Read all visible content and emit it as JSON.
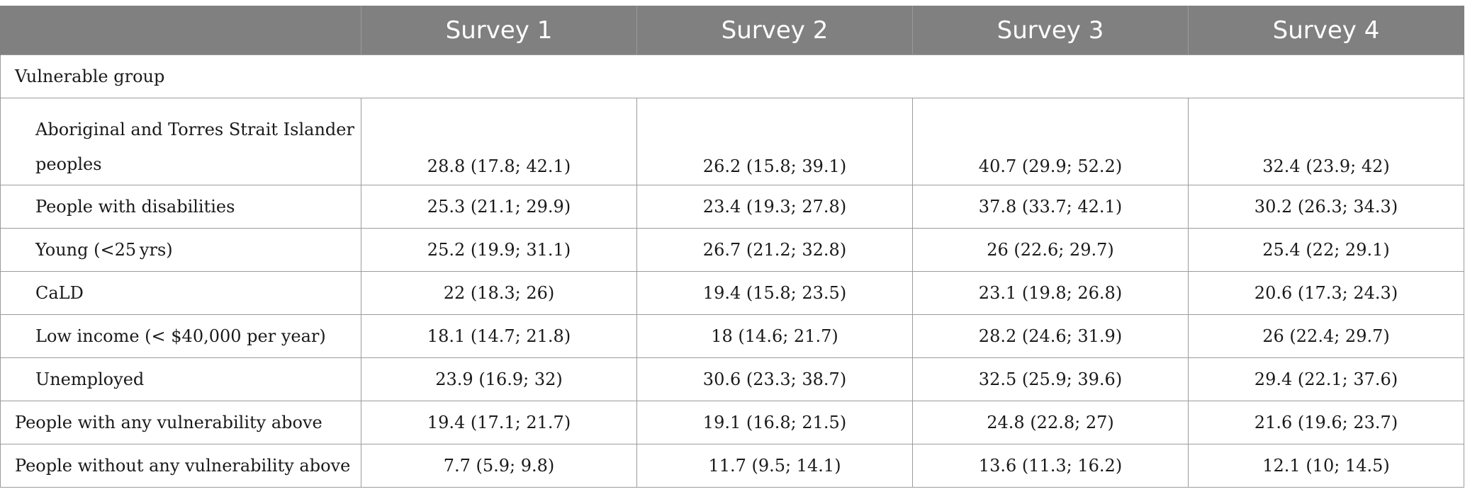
{
  "columns": [
    "",
    "Survey 1",
    "Survey 2",
    "Survey 3",
    "Survey 4"
  ],
  "group_label": "Vulnerable group",
  "rows": [
    {
      "label": "Aboriginal and Torres Strait Islander peoples",
      "values": [
        "28.8 (17.8; 42.1)",
        "26.2 (15.8; 39.1)",
        "40.7 (29.9; 52.2)",
        "32.4 (23.9; 42)"
      ]
    },
    {
      "label": "People with disabilities",
      "values": [
        "25.3 (21.1; 29.9)",
        "23.4 (19.3; 27.8)",
        "37.8 (33.7; 42.1)",
        "30.2 (26.3; 34.3)"
      ]
    },
    {
      "label": "Young (<25 yrs)",
      "values": [
        "25.2 (19.9; 31.1)",
        "26.7 (21.2; 32.8)",
        "26 (22.6; 29.7)",
        "25.4 (22; 29.1)"
      ]
    },
    {
      "label": "CaLD",
      "values": [
        "22 (18.3; 26)",
        "19.4 (15.8; 23.5)",
        "23.1 (19.8; 26.8)",
        "20.6 (17.3; 24.3)"
      ]
    },
    {
      "label": "Low income (< $40,000 per year)",
      "values": [
        "18.1 (14.7; 21.8)",
        "18 (14.6; 21.7)",
        "28.2 (24.6; 31.9)",
        "26 (22.4; 29.7)"
      ]
    },
    {
      "label": "Unemployed",
      "values": [
        "23.9 (16.9; 32)",
        "30.6 (23.3; 38.7)",
        "32.5 (25.9; 39.6)",
        "29.4 (22.1; 37.6)"
      ]
    },
    {
      "label": "People with any vulnerability above",
      "values": [
        "19.4 (17.1; 21.7)",
        "19.1 (16.8; 21.5)",
        "24.8 (22.8; 27)",
        "21.6 (19.6; 23.7)"
      ]
    },
    {
      "label": "People without any vulnerability above",
      "values": [
        "7.7 (5.9; 9.8)",
        "11.7 (9.5; 14.1)",
        "13.6 (11.3; 16.2)",
        "12.1 (10; 14.5)"
      ]
    }
  ]
}
